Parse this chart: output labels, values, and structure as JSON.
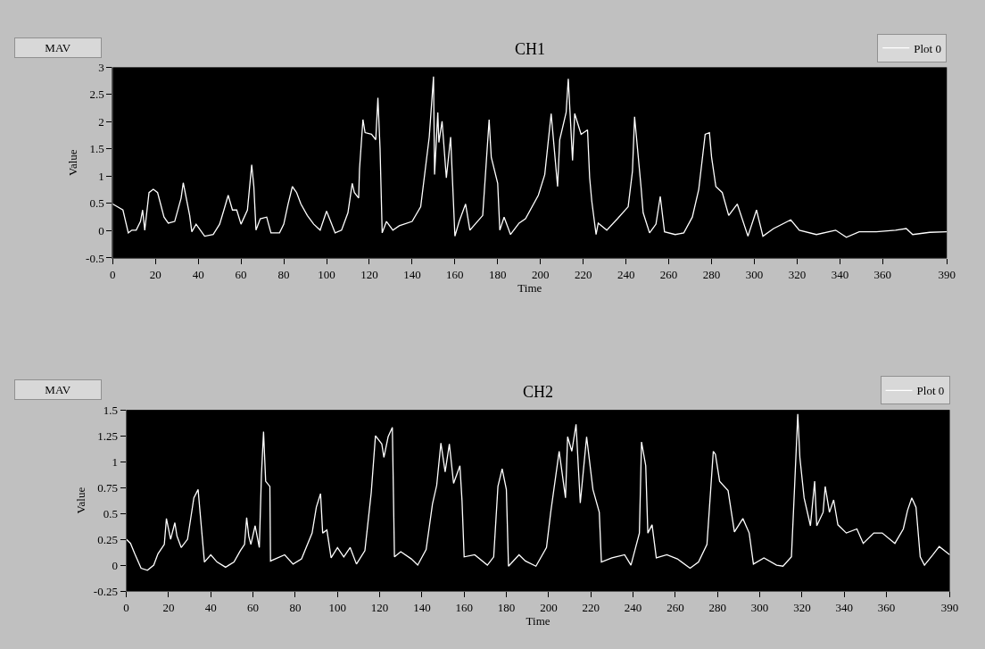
{
  "chart_data": [
    {
      "type": "line",
      "title": "CH1",
      "xlabel": "Time",
      "ylabel": "Value",
      "annotations": [
        "MAV"
      ],
      "xlim": [
        0,
        390
      ],
      "xticks": [
        0,
        20,
        40,
        60,
        80,
        100,
        120,
        140,
        160,
        180,
        200,
        220,
        240,
        260,
        280,
        300,
        320,
        340,
        360,
        390
      ],
      "ylim": [
        -0.5,
        3
      ],
      "yticks": [
        -0.5,
        0,
        0.5,
        1,
        1.5,
        2,
        2.5,
        3
      ],
      "grid": false,
      "legend": "top right",
      "marker": "none",
      "series": [
        {
          "name": "Plot 0",
          "color": "#ffffff",
          "x": [
            0,
            4.8,
            7.3,
            9,
            11,
            13,
            14,
            15,
            17,
            19,
            21,
            24,
            26,
            29,
            32,
            33,
            36,
            37,
            39,
            43,
            47,
            50,
            52,
            54,
            56,
            58,
            60,
            63,
            65,
            66,
            67,
            69,
            72,
            74,
            78,
            80,
            82,
            84,
            86,
            88,
            91,
            94,
            97,
            100,
            104,
            107,
            110,
            112,
            113,
            115,
            115.4,
            117,
            118,
            121,
            123,
            124,
            125,
            126,
            128,
            131,
            134,
            140,
            144,
            148,
            150,
            150.5,
            152,
            152.5,
            154,
            156,
            158,
            160,
            162,
            165,
            167,
            173,
            176,
            177,
            180,
            181,
            183,
            186,
            190,
            193,
            199,
            202,
            205,
            208,
            209,
            212,
            213,
            215,
            216,
            219,
            222,
            223,
            224,
            226,
            227,
            231,
            236,
            241,
            243,
            244,
            247,
            248,
            251,
            254,
            256,
            258,
            263,
            267,
            271,
            274,
            277,
            279,
            280,
            282,
            285,
            288,
            292,
            297,
            301,
            304,
            309,
            317,
            321,
            329,
            338,
            343,
            349,
            357,
            366,
            371,
            374,
            382,
            390
          ],
          "values": [
            0.49,
            0.38,
            -0.04,
            0.01,
            0.01,
            0.17,
            0.38,
            0.01,
            0.7,
            0.76,
            0.7,
            0.25,
            0.14,
            0.17,
            0.6,
            0.88,
            0.28,
            -0.02,
            0.12,
            -0.1,
            -0.07,
            0.12,
            0.38,
            0.65,
            0.38,
            0.38,
            0.12,
            0.38,
            1.21,
            0.81,
            0.01,
            0.22,
            0.25,
            -0.04,
            -0.04,
            0.12,
            0.49,
            0.81,
            0.7,
            0.49,
            0.28,
            0.12,
            0.01,
            0.36,
            -0.04,
            0.01,
            0.33,
            0.87,
            0.7,
            0.6,
            1.13,
            2.04,
            1.8,
            1.77,
            1.67,
            2.44,
            1.51,
            -0.04,
            0.17,
            0.01,
            0.09,
            0.17,
            0.44,
            1.72,
            2.83,
            1.03,
            2.17,
            1.62,
            2.01,
            0.97,
            1.72,
            -0.1,
            0.17,
            0.49,
            0.01,
            0.28,
            2.04,
            1.35,
            0.87,
            0.01,
            0.25,
            -0.07,
            0.14,
            0.22,
            0.65,
            1.03,
            2.15,
            0.81,
            1.67,
            2.17,
            2.79,
            1.29,
            2.15,
            1.77,
            1.85,
            0.97,
            0.54,
            -0.07,
            0.14,
            0.01,
            0.22,
            0.44,
            1.09,
            2.09,
            0.81,
            0.33,
            -0.04,
            0.12,
            0.63,
            -0.02,
            -0.07,
            -0.04,
            0.25,
            0.76,
            1.77,
            1.8,
            1.35,
            0.81,
            0.7,
            0.28,
            0.49,
            -0.1,
            0.38,
            -0.1,
            0.04,
            0.2,
            0.01,
            -0.07,
            0.01,
            -0.12,
            -0.02,
            -0.02,
            0.01,
            0.04,
            -0.07,
            -0.03,
            -0.02
          ]
        }
      ]
    },
    {
      "type": "line",
      "title": "CH2",
      "xlabel": "Time",
      "ylabel": "Value",
      "annotations": [
        "MAV"
      ],
      "xlim": [
        0,
        390
      ],
      "xticks": [
        0,
        20,
        40,
        60,
        80,
        100,
        120,
        140,
        160,
        180,
        200,
        220,
        240,
        260,
        280,
        300,
        320,
        340,
        360,
        390
      ],
      "ylim": [
        -0.25,
        1.5
      ],
      "yticks": [
        -0.25,
        0,
        0.25,
        0.5,
        0.75,
        1,
        1.25,
        1.5
      ],
      "grid": false,
      "legend": "top right",
      "marker": "none",
      "series": [
        {
          "name": "Plot 0",
          "color": "#ffffff",
          "x": [
            0,
            2,
            4,
            7,
            10,
            13,
            15,
            18,
            19,
            21,
            23,
            24,
            26,
            29,
            32,
            34,
            37,
            40,
            43,
            47,
            51,
            54,
            56,
            57,
            58,
            59,
            61,
            63,
            64,
            65,
            66,
            68,
            68.3,
            75,
            79,
            83,
            88,
            90,
            92,
            93,
            95,
            97,
            100,
            103,
            106,
            109,
            113,
            116,
            118,
            121,
            122,
            124,
            126,
            127,
            130,
            135,
            138,
            142,
            145,
            147,
            149,
            151,
            153,
            155,
            158,
            159,
            160,
            165,
            171,
            174,
            176,
            178,
            180,
            181,
            186,
            189,
            194,
            199,
            201,
            205,
            208,
            209,
            211,
            213,
            215,
            218,
            221,
            224,
            225,
            230,
            236,
            239,
            243,
            244,
            246,
            247,
            249,
            251,
            256,
            261,
            267,
            271,
            275,
            278,
            279,
            281,
            285,
            288,
            292,
            295,
            297,
            302,
            308,
            311,
            315,
            316.5,
            318,
            319,
            321,
            324,
            326,
            327,
            330,
            331,
            333,
            335,
            337,
            341,
            346,
            349,
            354,
            358,
            364,
            368,
            370,
            372,
            374,
            376,
            378,
            382,
            385,
            390
          ],
          "values": [
            0.25,
            0.21,
            0.11,
            -0.03,
            -0.05,
            0.0,
            0.11,
            0.2,
            0.45,
            0.25,
            0.41,
            0.28,
            0.17,
            0.25,
            0.65,
            0.73,
            0.03,
            0.1,
            0.03,
            -0.02,
            0.03,
            0.14,
            0.2,
            0.46,
            0.28,
            0.2,
            0.38,
            0.17,
            0.87,
            1.29,
            0.81,
            0.76,
            0.04,
            0.1,
            0.01,
            0.06,
            0.31,
            0.56,
            0.69,
            0.31,
            0.34,
            0.07,
            0.17,
            0.08,
            0.17,
            0.01,
            0.14,
            0.7,
            1.25,
            1.17,
            1.04,
            1.24,
            1.33,
            0.08,
            0.13,
            0.06,
            0.0,
            0.15,
            0.59,
            0.77,
            1.18,
            0.9,
            1.17,
            0.79,
            0.96,
            0.62,
            0.08,
            0.1,
            0.0,
            0.08,
            0.76,
            0.93,
            0.73,
            -0.01,
            0.1,
            0.04,
            -0.01,
            0.17,
            0.51,
            1.1,
            0.65,
            1.24,
            1.1,
            1.36,
            0.6,
            1.24,
            0.73,
            0.51,
            0.03,
            0.07,
            0.1,
            0.0,
            0.31,
            1.19,
            0.96,
            0.31,
            0.39,
            0.07,
            0.1,
            0.06,
            -0.03,
            0.03,
            0.2,
            1.1,
            1.07,
            0.81,
            0.72,
            0.32,
            0.45,
            0.31,
            0.01,
            0.07,
            0.0,
            -0.01,
            0.08,
            0.76,
            1.46,
            1.04,
            0.65,
            0.38,
            0.81,
            0.38,
            0.51,
            0.76,
            0.51,
            0.63,
            0.39,
            0.31,
            0.35,
            0.21,
            0.31,
            0.31,
            0.21,
            0.35,
            0.53,
            0.65,
            0.56,
            0.08,
            0.0,
            0.1,
            0.18,
            0.1
          ]
        }
      ]
    }
  ]
}
